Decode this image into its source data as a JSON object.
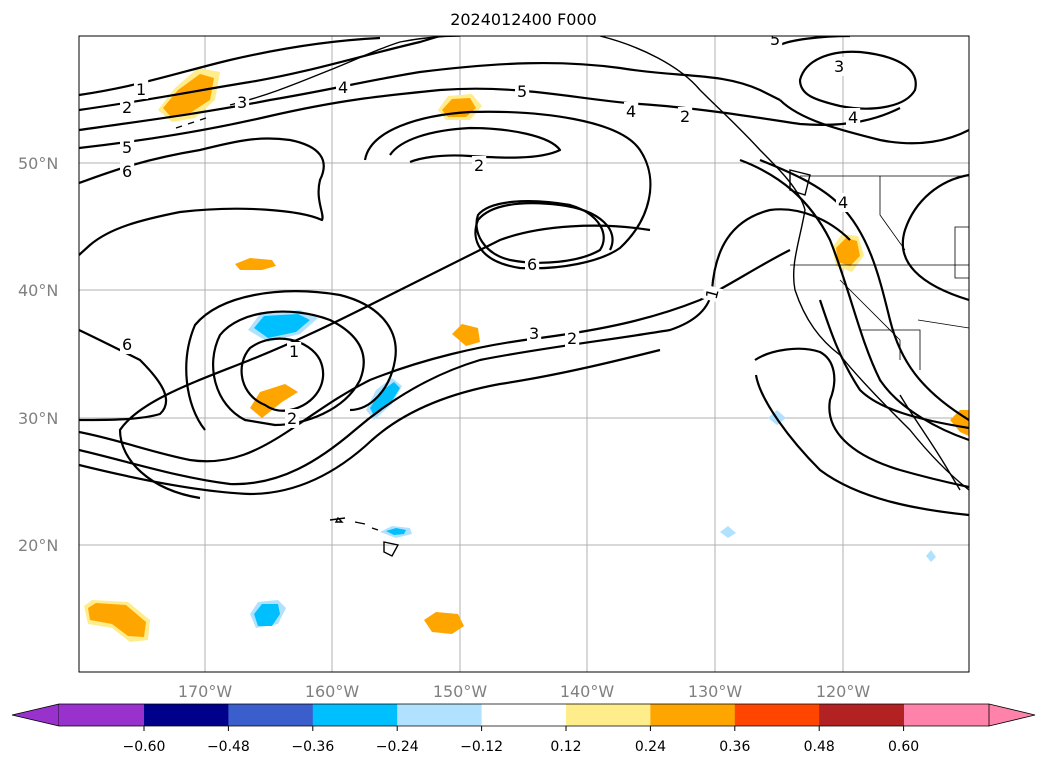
{
  "title": "2024012400 F000",
  "map": {
    "lat_labels": [
      "50°N",
      "40°N",
      "30°N",
      "20°N"
    ],
    "lon_labels": [
      "170°W",
      "160°W",
      "150°W",
      "140°W",
      "130°W",
      "120°W"
    ],
    "contour_labels": [
      "1",
      "2",
      "3",
      "4",
      "5",
      "2",
      "4",
      "5",
      "3",
      "4",
      "6",
      "5",
      "6",
      "6",
      "1",
      "2",
      "3",
      "2",
      "1",
      "2",
      "4"
    ]
  },
  "colorbar": {
    "ticks": [
      "−0.60",
      "−0.48",
      "−0.36",
      "−0.24",
      "−0.12",
      "0.12",
      "0.24",
      "0.36",
      "0.48",
      "0.60"
    ],
    "colors": {
      "under": "#9932cc",
      "bins": [
        "#00008b",
        "#3a5fcd",
        "#00bfff",
        "#b0e2ff",
        "#ffffff",
        "#ffec8b",
        "#ffa500",
        "#ff4500",
        "#b22222"
      ],
      "over": "#ff82ab"
    }
  },
  "colors": {
    "positive": "#ffa500",
    "positive_light": "#ffec8b",
    "negative": "#00bfff",
    "negative_light": "#b0e2ff"
  }
}
